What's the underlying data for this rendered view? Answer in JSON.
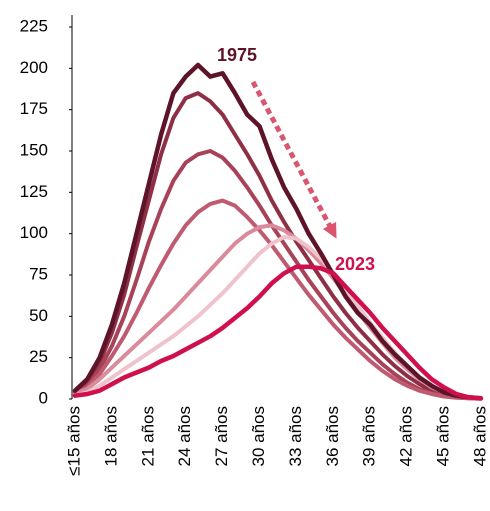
{
  "chart_data": {
    "type": "line",
    "categories": [
      "≤15 años",
      null,
      null,
      "18 años",
      null,
      null,
      "21 años",
      null,
      null,
      "24 años",
      null,
      null,
      "27 años",
      null,
      null,
      "30 años",
      null,
      null,
      "33 años",
      null,
      null,
      "36 años",
      null,
      null,
      "39 años",
      null,
      null,
      "42 años",
      null,
      null,
      "45 años",
      null,
      null,
      "48 años"
    ],
    "series": [
      {
        "color": "#8e2f45",
        "values": [
          4,
          10,
          22,
          40,
          63,
          92,
          120,
          148,
          170,
          182,
          185,
          180,
          172,
          160,
          148,
          135,
          120,
          107,
          95,
          84,
          73,
          62,
          52,
          43,
          35,
          27,
          20,
          14,
          9,
          5,
          3,
          1.5,
          0.8,
          0.3
        ]
      },
      {
        "color": "#a84258",
        "values": [
          3,
          8,
          18,
          32,
          50,
          72,
          95,
          115,
          132,
          143,
          148,
          150,
          146,
          138,
          128,
          117,
          105,
          94,
          83,
          72,
          62,
          52,
          43,
          35,
          28,
          21,
          15,
          10,
          6,
          3.5,
          2,
          1,
          0.5,
          0.2
        ]
      },
      {
        "color": "#bf5a70",
        "values": [
          3,
          7,
          15,
          26,
          38,
          52,
          67,
          81,
          94,
          105,
          113,
          118,
          120,
          117,
          110,
          102,
          93,
          83,
          73,
          63,
          54,
          45,
          37,
          30,
          23,
          17,
          12,
          8,
          5,
          3,
          1.5,
          0.8,
          0.4,
          0.2
        ]
      },
      {
        "color": "#d98a9b",
        "values": [
          3,
          6,
          12,
          19,
          26,
          33,
          40,
          47,
          54,
          62,
          70,
          78,
          86,
          94,
          100,
          104,
          105,
          102,
          97,
          90,
          82,
          73,
          63,
          53,
          43,
          34,
          25,
          18,
          12,
          7,
          4,
          2,
          1,
          0.3
        ]
      },
      {
        "color": "#efc3cc",
        "values": [
          2,
          4,
          8,
          13,
          18,
          23,
          28,
          33,
          38,
          44,
          50,
          57,
          64,
          72,
          80,
          88,
          94,
          98,
          97,
          92,
          85,
          76,
          66,
          56,
          46,
          37,
          28,
          20,
          13,
          8,
          4,
          2,
          1,
          0.3
        ]
      },
      {
        "name": "1975",
        "color": "#5e1428",
        "values": [
          5,
          12,
          25,
          45,
          70,
          100,
          130,
          160,
          185,
          195,
          202,
          195,
          197,
          185,
          172,
          165,
          145,
          128,
          115,
          100,
          88,
          75,
          62,
          52,
          45,
          35,
          27,
          20,
          13,
          8,
          4,
          2,
          1,
          0.5
        ]
      },
      {
        "name": "2023",
        "color": "#d0104c",
        "values": [
          2,
          3,
          5,
          9,
          13,
          16,
          19,
          23,
          26,
          30,
          34,
          38,
          43,
          49,
          55,
          62,
          70,
          76,
          80,
          80,
          79,
          76,
          68,
          60,
          52,
          43,
          35,
          27,
          19,
          12,
          7,
          3,
          1,
          0.5
        ]
      }
    ],
    "ylim": [
      0,
      225
    ],
    "yticks": [
      0,
      25,
      50,
      75,
      100,
      125,
      150,
      175,
      200,
      225
    ]
  }
}
